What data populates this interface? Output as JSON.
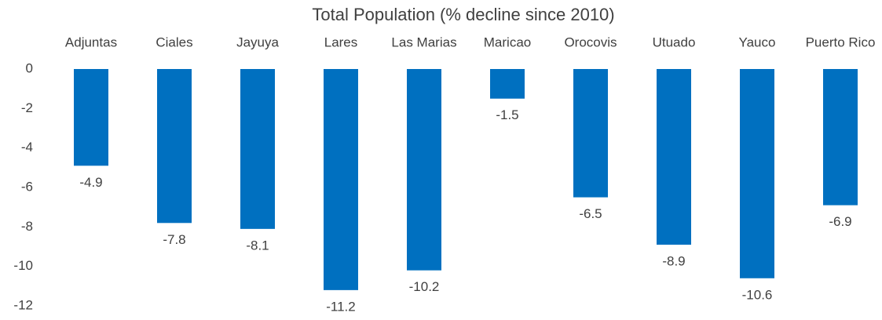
{
  "chart_data": {
    "type": "bar",
    "title": "Total Population (% decline since 2010)",
    "categories": [
      "Adjuntas",
      "Ciales",
      "Jayuya",
      "Lares",
      "Las Marias",
      "Maricao",
      "Orocovis",
      "Utuado",
      "Yauco",
      "Puerto Rico"
    ],
    "values": [
      -4.9,
      -7.8,
      -8.1,
      -11.2,
      -10.2,
      -1.5,
      -6.5,
      -8.9,
      -10.6,
      -6.9
    ],
    "color": "#0070c0",
    "ylim": [
      -12,
      0
    ],
    "yticks": [
      0,
      -2,
      -4,
      -6,
      -8,
      -10,
      -12
    ],
    "grid": false
  }
}
